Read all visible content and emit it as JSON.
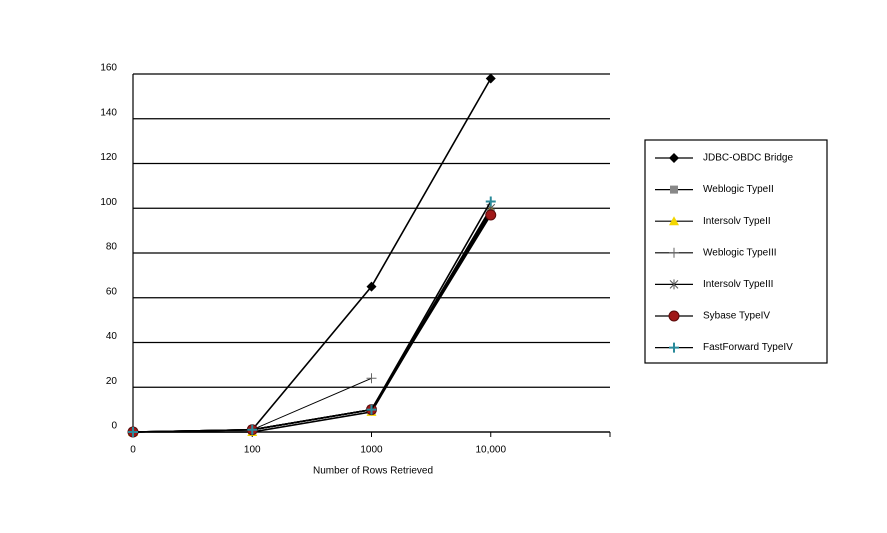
{
  "chart_data": {
    "type": "line",
    "x_label": "Number of Rows Retrieved",
    "categories": [
      "0",
      "100",
      "1000",
      "10,000",
      null
    ],
    "ylim": [
      0,
      160
    ],
    "yticks": [
      0,
      20,
      40,
      60,
      80,
      100,
      120,
      140,
      160
    ],
    "grid": true,
    "line_color": "#000000",
    "legend": "right",
    "series": [
      {
        "name": "JDBC-OBDC Bridge",
        "color": "#000000",
        "marker": "diamond",
        "values": [
          0,
          1,
          65,
          158,
          null
        ]
      },
      {
        "name": "Weblogic TypeII",
        "color": "#888888",
        "marker": "square",
        "values": [
          0,
          1,
          10,
          98,
          null
        ]
      },
      {
        "name": "Intersolv TypeII",
        "color": "#f2d600",
        "marker": "triangle",
        "values": [
          0,
          0,
          9,
          99,
          null
        ]
      },
      {
        "name": "Weblogic TypeIII",
        "color": "#666666",
        "marker": "plus",
        "values": [
          0,
          1,
          24,
          null,
          null
        ]
      },
      {
        "name": "Intersolv TypeIII",
        "color": "#555555",
        "marker": "star",
        "values": [
          0,
          1,
          10,
          100,
          null
        ]
      },
      {
        "name": "Sybase TypeIV",
        "color": "#a01818",
        "marker": "circle",
        "values": [
          0,
          1,
          10,
          97,
          null
        ]
      },
      {
        "name": "FastForward TypeIV",
        "color": "#2a8a9a",
        "marker": "cross",
        "values": [
          0,
          1,
          10,
          103,
          null
        ]
      }
    ]
  }
}
